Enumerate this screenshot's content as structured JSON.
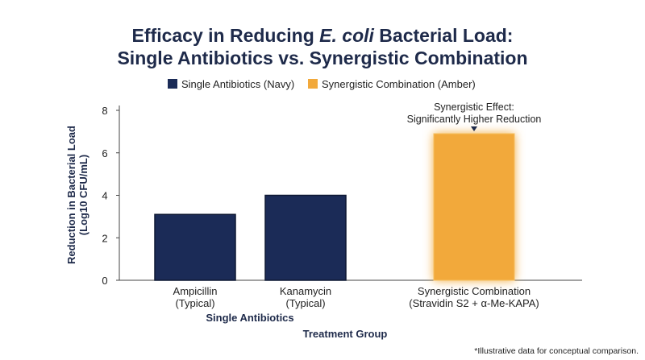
{
  "chart_data": {
    "type": "bar",
    "title_line1_prefix": "Efficacy in Reducing ",
    "title_line1_italic": "E. coli",
    "title_line1_suffix": " Bacterial Load:",
    "title_line2": "Single Antibiotics vs. Synergistic Combination",
    "ylabel_line1": "Reduction in Bacterial Load",
    "ylabel_line2": "(Log10 CFU/mL)",
    "xlabel": "Treatment Group",
    "group_label": "Single Antibiotics",
    "ylim": [
      0,
      8
    ],
    "yticks": [
      0,
      2,
      4,
      6,
      8
    ],
    "grid": false,
    "legend_position": "top-center",
    "legend": [
      {
        "label": "Single Antibiotics (Navy)",
        "color": "#1b2b57"
      },
      {
        "label": "Synergistic Combination (Amber)",
        "color": "#f2a93b"
      }
    ],
    "categories": [
      {
        "line1": "Ampicillin",
        "line2": "(Typical)"
      },
      {
        "line1": "Kanamycin",
        "line2": "(Typical)"
      },
      {
        "line1": "Synergistic Combination",
        "line2": "(Stravidin S2 + α-Me-KAPA)"
      }
    ],
    "series": [
      {
        "name": "Single Antibiotics (Navy)",
        "color": "#1b2b57",
        "values": [
          3.1,
          4.0,
          null
        ]
      },
      {
        "name": "Synergistic Combination (Amber)",
        "color": "#f2a93b",
        "values": [
          null,
          null,
          6.9
        ]
      }
    ],
    "annotation": {
      "line1": "Synergistic Effect:",
      "line2": "Significantly Higher Reduction"
    },
    "footnote": "*Illustrative data for conceptual comparison."
  }
}
